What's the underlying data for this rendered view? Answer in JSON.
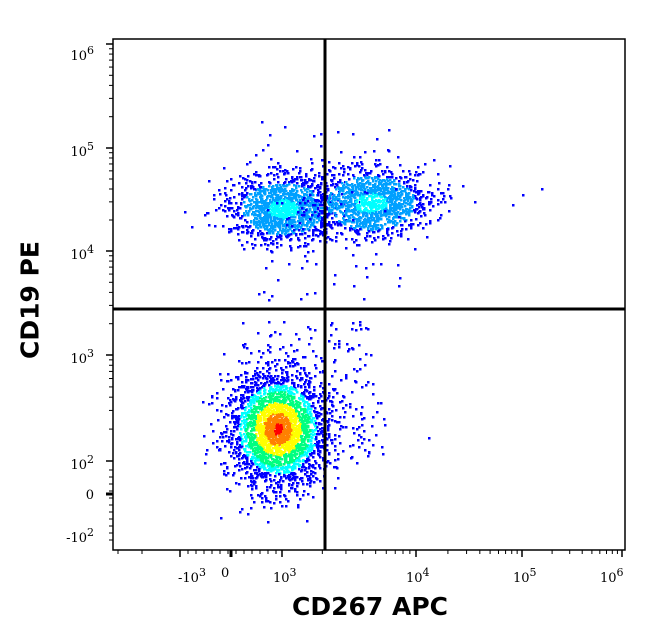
{
  "chart_data": {
    "type": "scatter",
    "subtype": "flow-cytometry-density-dot-plot",
    "title": "",
    "xlabel": "CD267 APC",
    "ylabel": "CD19 PE",
    "x_scale": "biexponential",
    "y_scale": "biexponential",
    "x_ticks": [
      "-10^3",
      "0",
      "10^3",
      "10^4",
      "10^5",
      "10^6"
    ],
    "y_ticks": [
      "-10^2",
      "0",
      "10^2",
      "10^3",
      "10^4",
      "10^5",
      "10^6"
    ],
    "xlim": [
      "<-10^3",
      "10^6"
    ],
    "ylim": [
      "<-10^2",
      "10^6"
    ],
    "grid": false,
    "legend": null,
    "quadrant_gates": {
      "x_threshold": 2200,
      "y_threshold": 2500
    },
    "populations": [
      {
        "name": "CD19- CD267- (lower-left)",
        "center_x": 900,
        "center_y": 200,
        "density": "very high",
        "peak_color": "red"
      },
      {
        "name": "CD19+ CD267- (upper-left)",
        "center_x": 1200,
        "center_y": 22000,
        "density": "medium",
        "peak_color": "cyan"
      },
      {
        "name": "CD19+ CD267+ (upper-right)",
        "center_x": 4000,
        "center_y": 27000,
        "density": "medium",
        "peak_color": "cyan"
      }
    ],
    "outliers": [
      {
        "x": 12000,
        "y": 70000
      },
      {
        "x": 20000,
        "y": 25000
      },
      {
        "x": 35000,
        "y": 30000
      },
      {
        "x": 80000,
        "y": 28000
      },
      {
        "x": 100000,
        "y": 35000
      },
      {
        "x": 150000,
        "y": 40000
      },
      {
        "x": 13000,
        "y": 170
      }
    ],
    "colormap": [
      "#0000ff",
      "#00a0ff",
      "#00ffff",
      "#00ff80",
      "#ffff00",
      "#ff8000",
      "#ff0000"
    ]
  },
  "axes": {
    "x_title": "CD267 APC",
    "y_title": "CD19 PE",
    "x_tick_labels": [
      {
        "base": "-10",
        "exp": "3"
      },
      {
        "base": "0",
        "exp": ""
      },
      {
        "base": "10",
        "exp": "3"
      },
      {
        "base": "10",
        "exp": "4"
      },
      {
        "base": "10",
        "exp": "5"
      },
      {
        "base": "10",
        "exp": "6"
      }
    ],
    "y_tick_labels": [
      {
        "base": "10",
        "exp": "6"
      },
      {
        "base": "10",
        "exp": "5"
      },
      {
        "base": "10",
        "exp": "4"
      },
      {
        "base": "10",
        "exp": "3"
      },
      {
        "base": "10",
        "exp": "2"
      },
      {
        "base": "0",
        "exp": ""
      },
      {
        "base": "-10",
        "exp": "2"
      }
    ]
  },
  "colors": {
    "frame": "#000000",
    "gate_line": "#000000",
    "background": "#ffffff"
  }
}
